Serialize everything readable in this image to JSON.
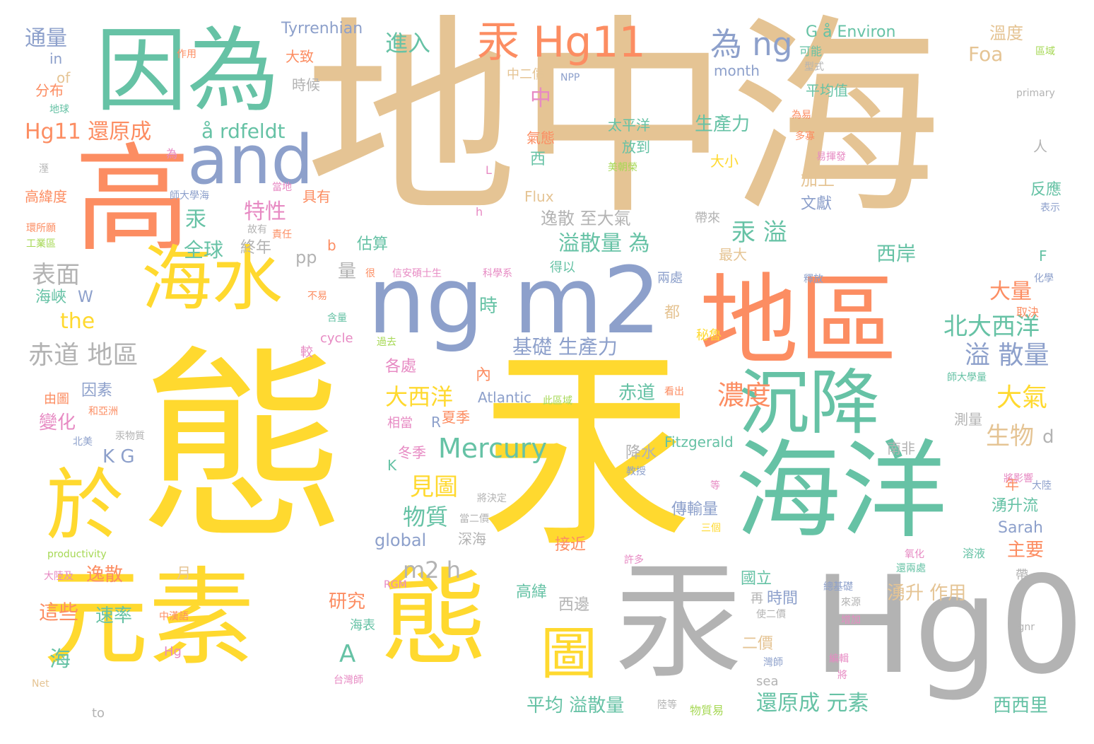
{
  "palette": {
    "tan": "#e5c494",
    "yellow": "#ffd92f",
    "teal": "#66c2a5",
    "orange": "#fc8d62",
    "blue": "#8da0cb",
    "gray": "#b3b3b3",
    "pink": "#e78ac3",
    "green": "#a6d854"
  },
  "words": [
    {
      "text": "地中海",
      "color": "tan"
    },
    {
      "text": "態",
      "color": "yellow"
    },
    {
      "text": "汞",
      "color": "yellow"
    },
    {
      "text": "Hg0",
      "color": "gray"
    },
    {
      "text": "汞",
      "color": "gray"
    },
    {
      "text": "元素",
      "color": "yellow"
    },
    {
      "text": "態",
      "color": "yellow"
    },
    {
      "text": "海洋",
      "color": "teal"
    },
    {
      "text": "地區",
      "color": "orange"
    },
    {
      "text": "ng m2",
      "color": "blue"
    },
    {
      "text": "高",
      "color": "orange"
    },
    {
      "text": "因為",
      "color": "teal"
    },
    {
      "text": "and",
      "color": "blue"
    },
    {
      "text": "海水",
      "color": "yellow"
    },
    {
      "text": "沉降",
      "color": "teal"
    },
    {
      "text": "於",
      "color": "yellow"
    },
    {
      "text": "圖",
      "color": "yellow"
    },
    {
      "text": "汞 Hg11",
      "color": "orange"
    },
    {
      "text": "為 ng",
      "color": "blue"
    },
    {
      "text": "Mercury",
      "color": "teal"
    },
    {
      "text": "赤道 地區",
      "color": "gray"
    },
    {
      "text": "Hg11 還原成",
      "color": "orange"
    },
    {
      "text": "å rdfeldt",
      "color": "teal"
    },
    {
      "text": "表面",
      "color": "gray"
    },
    {
      "text": "海峽",
      "color": "teal"
    },
    {
      "text": "汞 溢",
      "color": "teal"
    },
    {
      "text": "溢散量 為",
      "color": "teal"
    },
    {
      "text": "北大西洋",
      "color": "teal"
    },
    {
      "text": "溢 散量",
      "color": "blue"
    },
    {
      "text": "大西洋",
      "color": "yellow"
    },
    {
      "text": "濃度",
      "color": "orange"
    },
    {
      "text": "大氣",
      "color": "yellow"
    },
    {
      "text": "生物",
      "color": "tan"
    },
    {
      "text": "基礎 生產力",
      "color": "blue"
    },
    {
      "text": "見圖",
      "color": "yellow"
    },
    {
      "text": "物質",
      "color": "teal"
    },
    {
      "text": "m2 h",
      "color": "gray"
    },
    {
      "text": "global",
      "color": "blue"
    },
    {
      "text": "平均 溢散量",
      "color": "teal"
    },
    {
      "text": "還原成 元素",
      "color": "teal"
    },
    {
      "text": "西西里",
      "color": "teal"
    },
    {
      "text": "進入",
      "color": "teal"
    },
    {
      "text": "通量",
      "color": "blue"
    },
    {
      "text": "特性",
      "color": "pink"
    },
    {
      "text": "全球",
      "color": "teal"
    },
    {
      "text": "生產力",
      "color": "teal"
    },
    {
      "text": "太平洋",
      "color": "teal"
    },
    {
      "text": "Foa",
      "color": "tan"
    },
    {
      "text": "溫度",
      "color": "tan"
    },
    {
      "text": "Tyrrenhian",
      "color": "blue"
    },
    {
      "text": "G å Environ",
      "color": "teal"
    },
    {
      "text": "month",
      "color": "blue"
    },
    {
      "text": "逸散 至大氣",
      "color": "gray"
    },
    {
      "text": "Fitzgerald",
      "color": "teal"
    },
    {
      "text": "Sarah",
      "color": "blue"
    },
    {
      "text": "Atlantic",
      "color": "blue"
    },
    {
      "text": "the",
      "color": "yellow"
    },
    {
      "text": "W",
      "color": "blue"
    },
    {
      "text": "K G",
      "color": "blue"
    },
    {
      "text": "變化",
      "color": "pink"
    },
    {
      "text": "因素",
      "color": "blue"
    },
    {
      "text": "赤道",
      "color": "teal"
    },
    {
      "text": "湧升 作用",
      "color": "tan"
    },
    {
      "text": "研究",
      "color": "orange"
    },
    {
      "text": "速率",
      "color": "teal"
    },
    {
      "text": "這些",
      "color": "orange"
    },
    {
      "text": "逸散",
      "color": "orange"
    },
    {
      "text": "西岸",
      "color": "teal"
    },
    {
      "text": "大量",
      "color": "orange"
    },
    {
      "text": "估算",
      "color": "teal"
    },
    {
      "text": "時",
      "color": "teal"
    },
    {
      "text": "終年",
      "color": "gray"
    },
    {
      "text": "汞",
      "color": "teal"
    },
    {
      "text": "中",
      "color": "pink"
    },
    {
      "text": "A",
      "color": "teal"
    },
    {
      "text": "海",
      "color": "teal"
    },
    {
      "text": "量",
      "color": "gray"
    },
    {
      "text": "pp",
      "color": "gray"
    },
    {
      "text": "b",
      "color": "orange"
    },
    {
      "text": "d",
      "color": "gray"
    },
    {
      "text": "R",
      "color": "blue"
    },
    {
      "text": "K",
      "color": "teal"
    },
    {
      "text": "深海",
      "color": "gray"
    },
    {
      "text": "西邊",
      "color": "gray"
    },
    {
      "text": "高緯",
      "color": "teal"
    },
    {
      "text": "時間",
      "color": "blue"
    },
    {
      "text": "二價",
      "color": "tan"
    },
    {
      "text": "國立",
      "color": "teal"
    },
    {
      "text": "主要",
      "color": "orange"
    },
    {
      "text": "湧升流",
      "color": "teal"
    },
    {
      "text": "年",
      "color": "orange"
    },
    {
      "text": "接近",
      "color": "orange"
    },
    {
      "text": "傳輸量",
      "color": "blue"
    },
    {
      "text": "降水",
      "color": "gray"
    },
    {
      "text": "加上",
      "color": "tan"
    },
    {
      "text": "文獻",
      "color": "blue"
    },
    {
      "text": "反應",
      "color": "teal"
    },
    {
      "text": "平均值",
      "color": "teal"
    },
    {
      "text": "放到",
      "color": "teal"
    },
    {
      "text": "大小",
      "color": "yellow"
    },
    {
      "text": "西",
      "color": "teal"
    },
    {
      "text": "冬季",
      "color": "pink"
    },
    {
      "text": "夏季",
      "color": "orange"
    },
    {
      "text": "相當",
      "color": "pink"
    },
    {
      "text": "各處",
      "color": "pink"
    },
    {
      "text": "內",
      "color": "orange"
    },
    {
      "text": "都",
      "color": "tan"
    },
    {
      "text": "兩處",
      "color": "blue"
    },
    {
      "text": "最大",
      "color": "tan"
    },
    {
      "text": "南非",
      "color": "gray"
    },
    {
      "text": "測量",
      "color": "gray"
    },
    {
      "text": "Flux",
      "color": "tan"
    },
    {
      "text": "大致",
      "color": "orange"
    },
    {
      "text": "時候",
      "color": "gray"
    },
    {
      "text": "中二價",
      "color": "tan"
    },
    {
      "text": "NPP",
      "color": "blue"
    },
    {
      "text": "可能",
      "color": "teal"
    },
    {
      "text": "分布",
      "color": "orange"
    },
    {
      "text": "in",
      "color": "blue"
    },
    {
      "text": "of",
      "color": "tan"
    },
    {
      "text": "地球",
      "color": "teal"
    },
    {
      "text": "高緯度",
      "color": "orange"
    },
    {
      "text": "具有",
      "color": "orange"
    },
    {
      "text": "由圖",
      "color": "orange"
    },
    {
      "text": "cycle",
      "color": "pink"
    },
    {
      "text": "較",
      "color": "pink"
    },
    {
      "text": "productivity",
      "color": "green"
    },
    {
      "text": "大陸及",
      "color": "pink"
    },
    {
      "text": "月",
      "color": "tan"
    },
    {
      "text": "Hg",
      "color": "pink"
    },
    {
      "text": "Net",
      "color": "tan"
    },
    {
      "text": "to",
      "color": "gray"
    },
    {
      "text": "sea",
      "color": "gray"
    },
    {
      "text": "海表",
      "color": "teal"
    },
    {
      "text": "台灣師",
      "color": "pink"
    },
    {
      "text": "物質易",
      "color": "green"
    },
    {
      "text": "得以",
      "color": "teal"
    },
    {
      "text": "L",
      "color": "pink"
    },
    {
      "text": "h",
      "color": "pink"
    },
    {
      "text": "F",
      "color": "teal"
    },
    {
      "text": "人",
      "color": "gray"
    },
    {
      "text": "primary",
      "color": "gray"
    },
    {
      "text": "取決",
      "color": "orange"
    },
    {
      "text": "化學",
      "color": "blue"
    },
    {
      "text": "釋放",
      "color": "blue"
    },
    {
      "text": "秘魯",
      "color": "yellow"
    },
    {
      "text": "氣態",
      "color": "orange"
    },
    {
      "text": "帶來",
      "color": "gray"
    },
    {
      "text": "Hgnr",
      "color": "gray"
    },
    {
      "text": "帶",
      "color": "gray"
    },
    {
      "text": "溶液",
      "color": "teal"
    },
    {
      "text": "氧化",
      "color": "pink"
    },
    {
      "text": "增加",
      "color": "pink"
    },
    {
      "text": "來源",
      "color": "gray"
    },
    {
      "text": "使二價",
      "color": "gray"
    },
    {
      "text": "再",
      "color": "gray"
    },
    {
      "text": "RGM",
      "color": "pink"
    },
    {
      "text": "中漢語",
      "color": "orange"
    },
    {
      "text": "北美",
      "color": "blue"
    },
    {
      "text": "很",
      "color": "orange"
    },
    {
      "text": "不易",
      "color": "orange"
    },
    {
      "text": "含量",
      "color": "teal"
    },
    {
      "text": "過去",
      "color": "green"
    },
    {
      "text": "當地",
      "color": "pink"
    },
    {
      "text": "故有",
      "color": "gray"
    },
    {
      "text": "責任",
      "color": "orange"
    },
    {
      "text": "信安碩士生",
      "color": "pink"
    },
    {
      "text": "科學系",
      "color": "pink"
    },
    {
      "text": "環所願",
      "color": "orange"
    },
    {
      "text": "工業區",
      "color": "green"
    },
    {
      "text": "作用",
      "color": "orange"
    },
    {
      "text": "區域",
      "color": "green"
    },
    {
      "text": "表示",
      "color": "blue"
    },
    {
      "text": "易揮發",
      "color": "pink"
    },
    {
      "text": "多寡",
      "color": "orange"
    },
    {
      "text": "為易",
      "color": "orange"
    },
    {
      "text": "型式",
      "color": "gray"
    },
    {
      "text": "美朝榮",
      "color": "green"
    },
    {
      "text": "為",
      "color": "pink"
    },
    {
      "text": "溼",
      "color": "gray"
    },
    {
      "text": "師大學海",
      "color": "blue"
    },
    {
      "text": "此區域",
      "color": "green"
    },
    {
      "text": "看出",
      "color": "orange"
    },
    {
      "text": "將決定",
      "color": "gray"
    },
    {
      "text": "當二價",
      "color": "gray"
    },
    {
      "text": "將影響",
      "color": "pink"
    },
    {
      "text": "師大學量",
      "color": "teal"
    },
    {
      "text": "大陸",
      "color": "blue"
    },
    {
      "text": "許多",
      "color": "pink"
    },
    {
      "text": "三個",
      "color": "yellow"
    },
    {
      "text": "教授",
      "color": "blue"
    },
    {
      "text": "等",
      "color": "pink"
    },
    {
      "text": "還兩處",
      "color": "teal"
    },
    {
      "text": "總基礎",
      "color": "blue"
    },
    {
      "text": "編輯",
      "color": "pink"
    },
    {
      "text": "灣師",
      "color": "blue"
    },
    {
      "text": "將",
      "color": "pink"
    },
    {
      "text": "陸等",
      "color": "gray"
    },
    {
      "text": "和亞洲",
      "color": "orange"
    },
    {
      "text": "汞物質",
      "color": "gray"
    }
  ]
}
